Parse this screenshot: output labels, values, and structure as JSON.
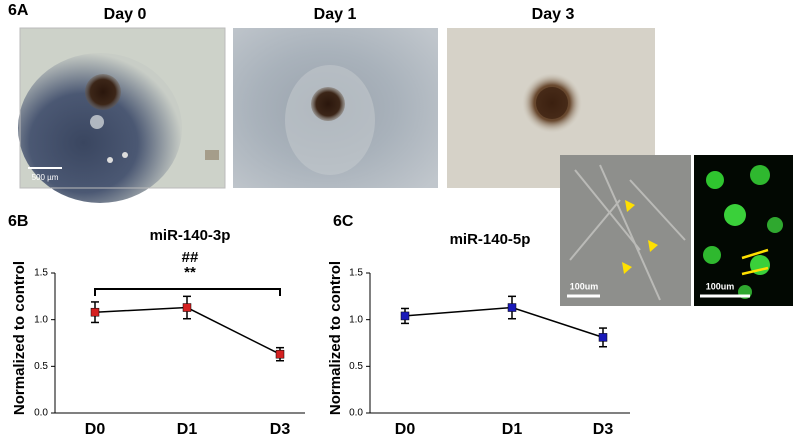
{
  "figure": {
    "panel_a": "6A",
    "panel_b": "6B",
    "panel_c": "6C",
    "days": [
      "Day 0",
      "Day 1",
      "Day 3"
    ],
    "scale_large": "500 µm",
    "scale_small_1": "100um",
    "scale_small_2": "100um"
  },
  "chart_data": [
    {
      "type": "line",
      "title": "miR-140-3p",
      "annotations": [
        "##",
        "**"
      ],
      "y_label": "Normalized to control",
      "categories": [
        "D0",
        "D1",
        "D3"
      ],
      "series": [
        {
          "color": "#d42020",
          "values": [
            1.08,
            1.13,
            0.63
          ],
          "errors": [
            0.11,
            0.12,
            0.07
          ]
        }
      ],
      "ylim": [
        0,
        1.5
      ],
      "yticks": [
        {
          "value": 0,
          "label": "0.0"
        },
        {
          "value": 0.5,
          "label": "0.5"
        },
        {
          "value": 1,
          "label": "1.0"
        },
        1.5
      ]
    },
    {
      "type": "line",
      "title": "miR-140-5p",
      "y_label": "Normalized to control",
      "categories": [
        "D0",
        "D1",
        "D3"
      ],
      "series": [
        {
          "color": "#1a1ab8",
          "values": [
            1.04,
            1.13,
            0.81
          ],
          "errors": [
            0.08,
            0.12,
            0.1
          ]
        }
      ],
      "ylim": [
        0,
        1.5
      ],
      "yticks": [
        {
          "value": 0,
          "label": "0.0"
        },
        {
          "value": 0.5,
          "label": "0.5"
        },
        {
          "value": 1,
          "label": "1.0"
        },
        1.5
      ]
    }
  ]
}
